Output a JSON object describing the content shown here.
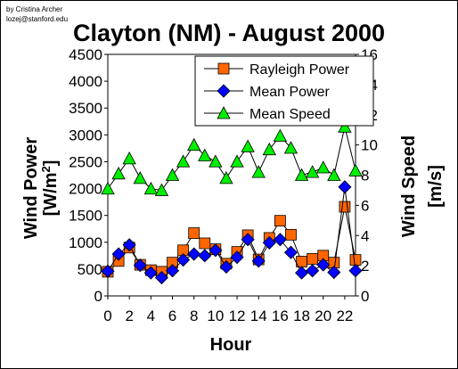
{
  "credit": {
    "line1": "by Cristina Archer",
    "line2": "lozej@stanford.edu"
  },
  "colors": {
    "rayleigh": "#ff6600",
    "mean_power": "#0000ff",
    "mean_speed": "#00ee00",
    "line": "#000000"
  },
  "chart_data": {
    "type": "line",
    "title": "Clayton (NM) - August 2000",
    "xlabel": "Hour",
    "ylabel": "Wind Power [W/m2]",
    "ylabel_main": "Wind Power",
    "ylabel_unit": "[W/m",
    "ylabel_sup": "2",
    "ylabel_close": "]",
    "y2label": "Wind Speed",
    "y2label_unit": "[m/s]",
    "xlim": [
      0,
      23
    ],
    "ylim": [
      0,
      4500
    ],
    "y2lim": [
      0,
      16
    ],
    "x_ticks": [
      "0",
      "2",
      "4",
      "6",
      "8",
      "10",
      "12",
      "14",
      "16",
      "18",
      "20",
      "22"
    ],
    "y_ticks": [
      "0",
      "500",
      "1000",
      "1500",
      "2000",
      "2500",
      "3000",
      "3500",
      "4000",
      "4500"
    ],
    "y2_ticks": [
      "0",
      "2",
      "4",
      "6",
      "8",
      "10",
      "12",
      "14",
      "16"
    ],
    "legend_position": "top-right",
    "x": [
      0,
      1,
      2,
      3,
      4,
      5,
      6,
      7,
      8,
      9,
      10,
      11,
      12,
      13,
      14,
      15,
      16,
      17,
      18,
      19,
      20,
      21,
      22,
      23
    ],
    "series": [
      {
        "name": "Rayleigh Power",
        "axis": "left",
        "marker": "square",
        "values": [
          450,
          650,
          900,
          580,
          480,
          450,
          620,
          850,
          1170,
          980,
          870,
          600,
          820,
          1130,
          680,
          1080,
          1400,
          1140,
          640,
          690,
          750,
          620,
          1660,
          670
        ]
      },
      {
        "name": "Mean Power",
        "axis": "left",
        "marker": "diamond",
        "values": [
          460,
          780,
          950,
          570,
          430,
          340,
          470,
          670,
          780,
          750,
          850,
          540,
          720,
          1050,
          650,
          990,
          1050,
          810,
          430,
          470,
          580,
          440,
          2030,
          470
        ]
      },
      {
        "name": "Mean Speed",
        "axis": "right",
        "marker": "triangle",
        "values": [
          7.1,
          8.1,
          9.1,
          7.8,
          7.1,
          7.0,
          8.0,
          8.9,
          10.0,
          9.3,
          8.9,
          7.8,
          8.9,
          9.9,
          8.2,
          9.7,
          10.6,
          9.8,
          8.0,
          8.2,
          8.5,
          8.0,
          11.2,
          8.3
        ]
      }
    ]
  }
}
